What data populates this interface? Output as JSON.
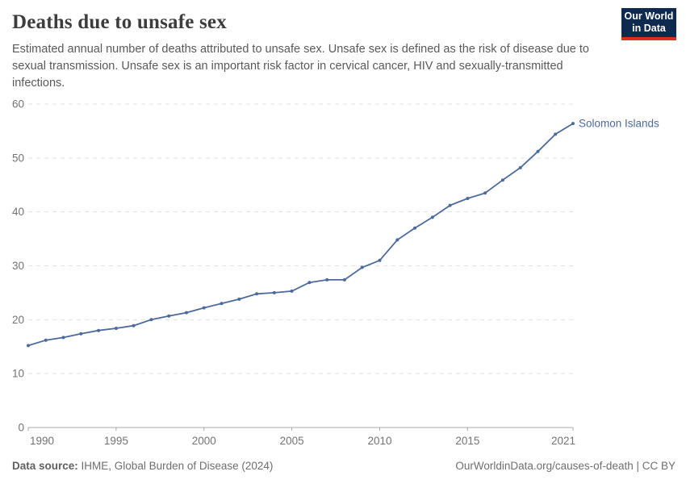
{
  "header": {
    "title": "Deaths due to unsafe sex",
    "subtitle": "Estimated annual number of deaths attributed to unsafe sex. Unsafe sex is defined as the risk of disease due to sexual transmission. Unsafe sex is an important risk factor in cervical cancer, HIV and sexually-transmitted infections.",
    "logo": {
      "line1": "Our World",
      "line2": "in Data",
      "bg_color": "#0e2a4e",
      "accent_color": "#dc2d20"
    }
  },
  "footer": {
    "source_label": "Data source:",
    "source_value": "IHME, Global Burden of Disease (2024)",
    "url": "OurWorldinData.org/causes-of-death",
    "divider": " | ",
    "license": "CC BY"
  },
  "chart_data": {
    "type": "line",
    "title": "Deaths due to unsafe sex",
    "xlabel": "",
    "ylabel": "",
    "xlim": [
      1990,
      2021
    ],
    "ylim": [
      0,
      60
    ],
    "x_ticks": [
      1990,
      1995,
      2000,
      2005,
      2010,
      2015,
      2021
    ],
    "y_ticks": [
      0,
      10,
      20,
      30,
      40,
      50,
      60
    ],
    "grid": "horizontal-dashed",
    "legend_position": "line-end-label",
    "series": [
      {
        "name": "Solomon Islands",
        "color": "#4c6a9c",
        "x": [
          1990,
          1991,
          1992,
          1993,
          1994,
          1995,
          1996,
          1997,
          1998,
          1999,
          2000,
          2001,
          2002,
          2003,
          2004,
          2005,
          2006,
          2007,
          2008,
          2009,
          2010,
          2011,
          2012,
          2013,
          2014,
          2015,
          2016,
          2017,
          2018,
          2019,
          2020,
          2021
        ],
        "values": [
          15.2,
          16.2,
          16.7,
          17.4,
          18.0,
          18.4,
          18.9,
          20.0,
          20.7,
          21.3,
          22.2,
          23.0,
          23.8,
          24.8,
          25.0,
          25.3,
          26.9,
          27.4,
          27.4,
          29.7,
          31.0,
          34.8,
          37.0,
          39.0,
          41.2,
          42.5,
          43.5,
          45.9,
          48.2,
          51.2,
          54.4,
          56.4
        ]
      }
    ]
  }
}
